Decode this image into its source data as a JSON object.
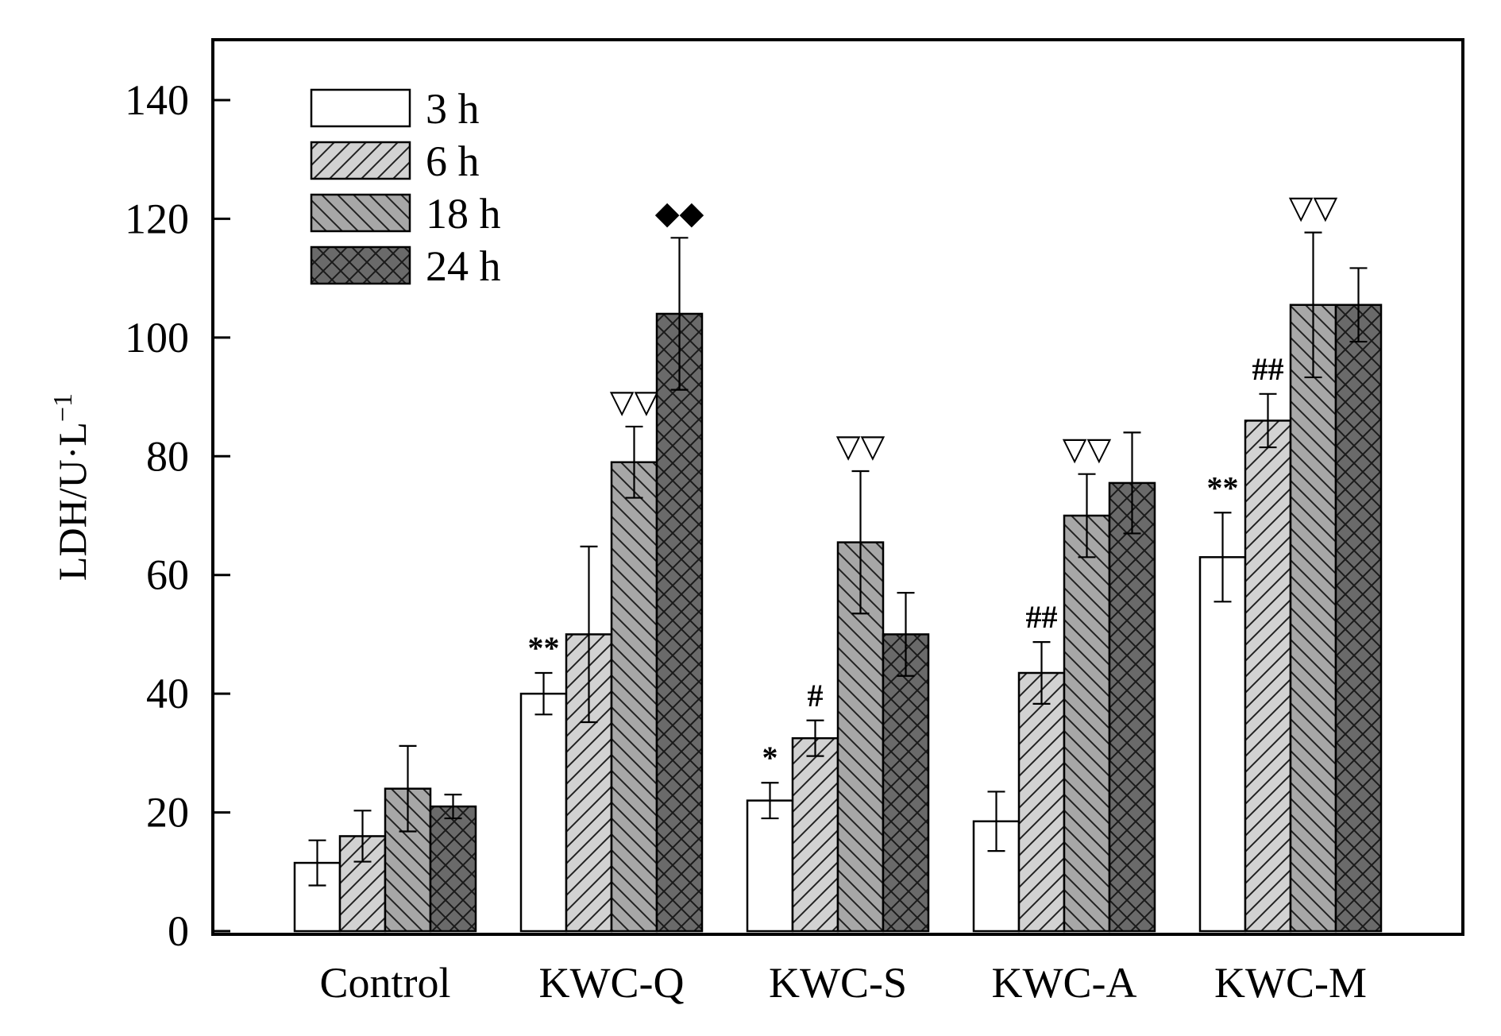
{
  "chart_data": {
    "type": "bar",
    "title": "",
    "xlabel": "",
    "ylabel": "LDH/U·L",
    "ylabel_superscript": "−1",
    "ylim": [
      0,
      150
    ],
    "yticks": [
      0,
      20,
      40,
      60,
      80,
      100,
      120,
      140
    ],
    "grid": false,
    "legend_position": "top-left",
    "categories": [
      "Control",
      "KWC-Q",
      "KWC-S",
      "KWC-A",
      "KWC-M"
    ],
    "series": [
      {
        "name": "3 h",
        "fill": "#ffffff",
        "pattern": "none",
        "values": [
          11.5,
          40,
          22,
          18.5,
          63
        ],
        "errors": [
          3.8,
          3.5,
          3,
          5,
          7.5
        ],
        "markers": [
          "",
          "**",
          "*",
          "",
          "**"
        ]
      },
      {
        "name": "6 h",
        "fill": "#d2d2d2",
        "pattern": "forward-diagonal",
        "values": [
          16,
          50,
          32.5,
          43.5,
          86
        ],
        "errors": [
          4.3,
          14.8,
          3,
          5.2,
          4.5
        ],
        "markers": [
          "",
          "",
          "#",
          "##",
          "##"
        ]
      },
      {
        "name": "18 h",
        "fill": "#a7a7a7",
        "pattern": "back-diagonal",
        "values": [
          24,
          79,
          65.5,
          70,
          105.5
        ],
        "errors": [
          7.2,
          6,
          12,
          7,
          12.2
        ],
        "markers": [
          "",
          "▽▽",
          "▽▽",
          "▽▽",
          "▽▽"
        ]
      },
      {
        "name": "24 h",
        "fill": "#6a6a6a",
        "pattern": "crosshatch",
        "values": [
          21,
          104,
          50,
          75.5,
          105.5
        ],
        "errors": [
          2,
          12.8,
          7,
          8.5,
          6.2
        ],
        "markers": [
          "",
          "◆◆",
          "",
          "",
          ""
        ]
      }
    ]
  }
}
